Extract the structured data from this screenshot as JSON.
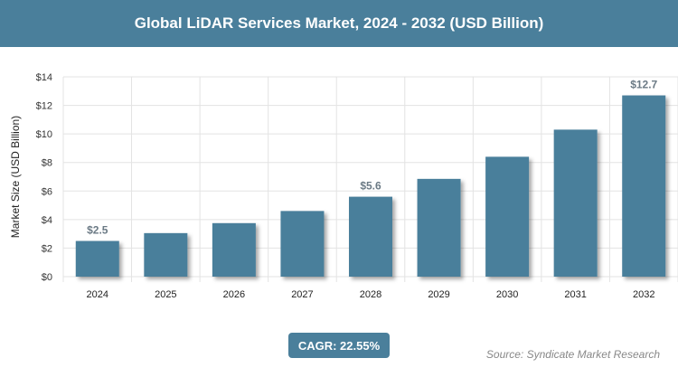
{
  "chart_data": {
    "type": "bar",
    "title": "Global LiDAR Services Market, 2024 - 2032 (USD Billion)",
    "xlabel": "",
    "ylabel": "Market Size (USD Billion)",
    "categories": [
      "2024",
      "2025",
      "2026",
      "2027",
      "2028",
      "2029",
      "2030",
      "2031",
      "2032"
    ],
    "values": [
      2.5,
      3.05,
      3.75,
      4.6,
      5.6,
      6.85,
      8.4,
      10.3,
      12.7
    ],
    "data_labels": {
      "2024": "$2.5",
      "2028": "$5.6",
      "2032": "$12.7"
    },
    "ylim": [
      0,
      14
    ],
    "yticks": [
      "$0",
      "$2",
      "$4",
      "$6",
      "$8",
      "$10",
      "$12",
      "$14"
    ],
    "grid": true,
    "bar_color": "#4a7f9b"
  },
  "cagr": "CAGR: 22.55%",
  "source": "Source: Syndicate Market Research"
}
